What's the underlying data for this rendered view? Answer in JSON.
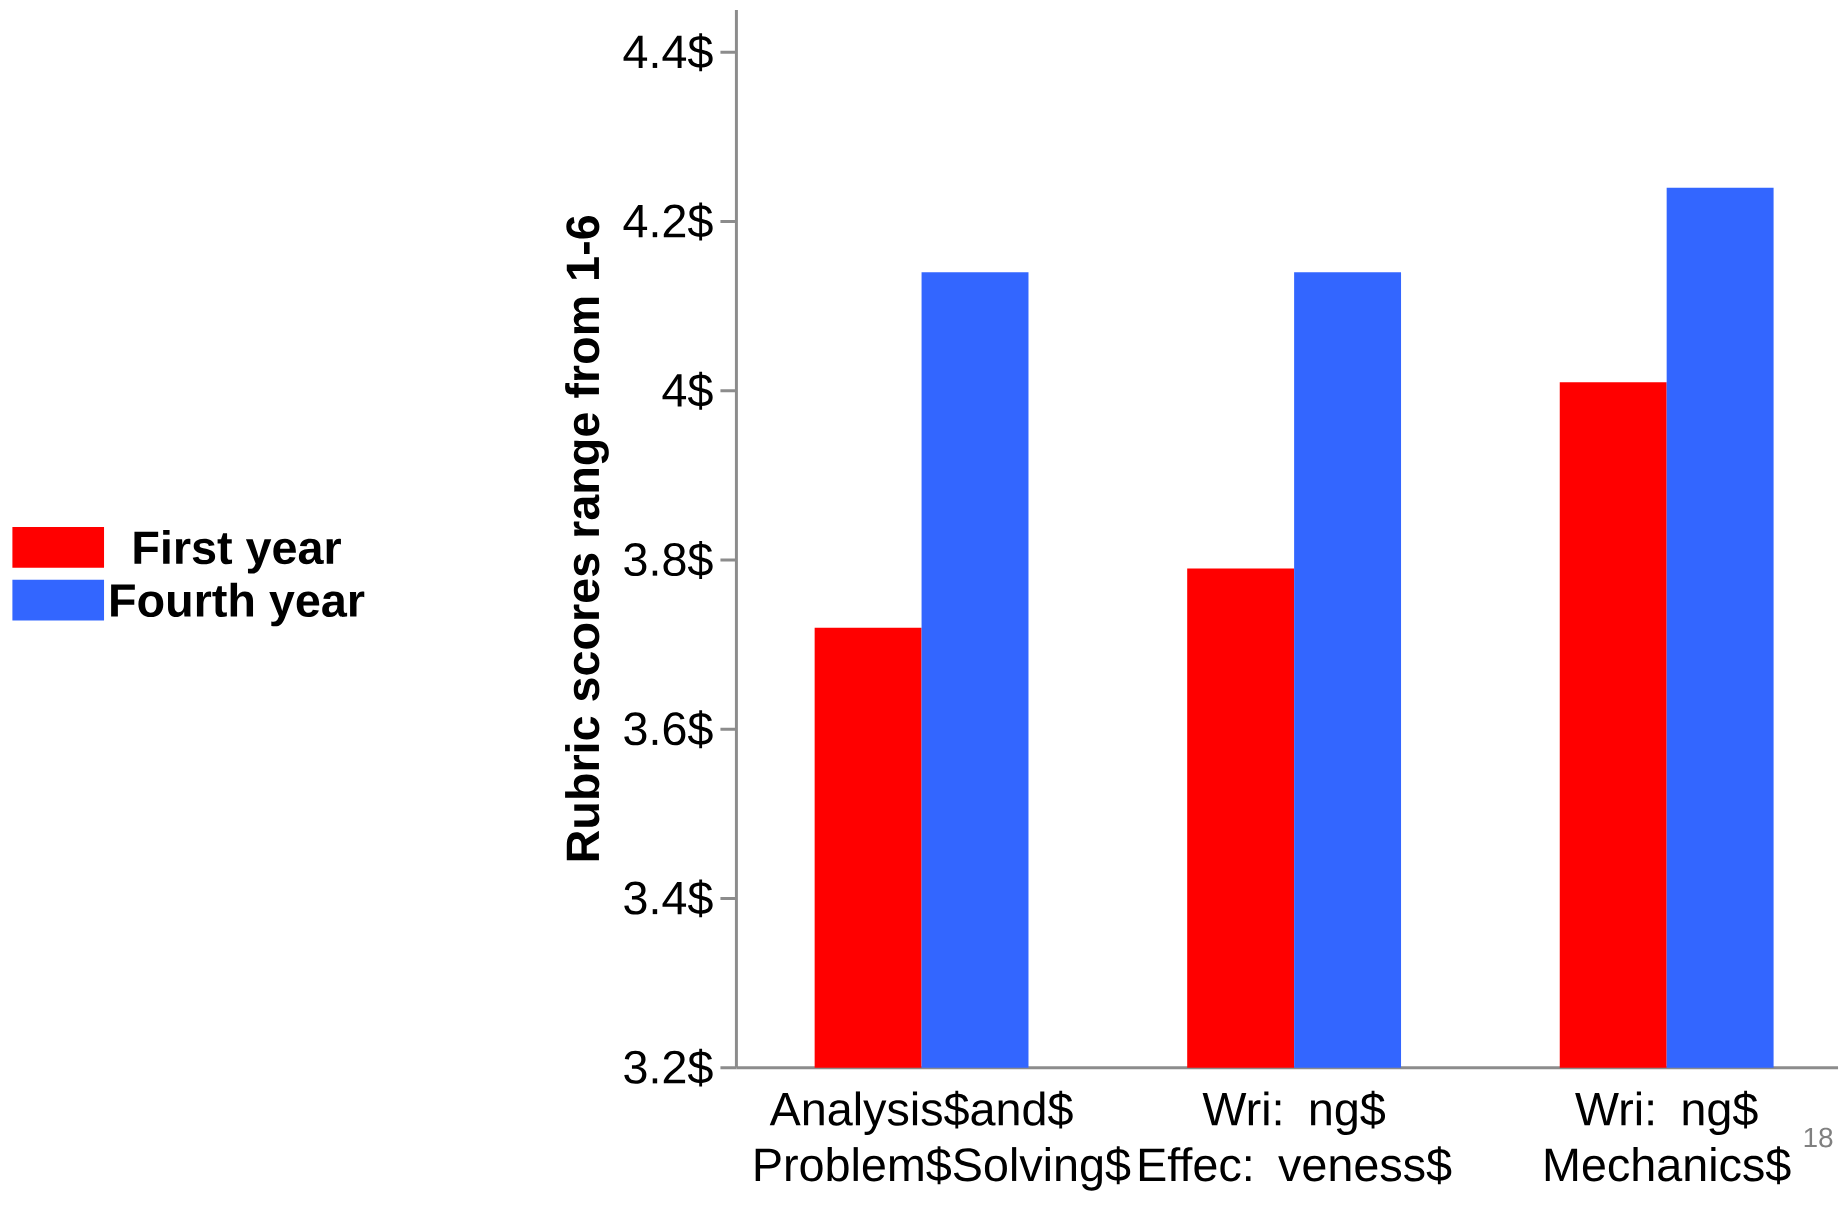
{
  "chart_data": {
    "type": "bar",
    "ylabel": "Rubric scores range from 1-6",
    "categories": [
      "Analysis$and$ Problem$Solving$",
      "Wri: ng$ Effec: veness$",
      "Wri: ng$ Mechanics$"
    ],
    "series": [
      {
        "name": "First year",
        "color": "#ff0000",
        "values": [
          3.72,
          3.79,
          4.01
        ]
      },
      {
        "name": "Fourth year",
        "color": "#3366ff",
        "values": [
          4.14,
          4.14,
          4.24
        ]
      }
    ],
    "ylim": [
      3.2,
      4.45
    ],
    "yticks": [
      {
        "value": 3.2,
        "label": "3.2$"
      },
      {
        "value": 3.4,
        "label": "3.4$"
      },
      {
        "value": 3.6,
        "label": "3.6$"
      },
      {
        "value": 3.8,
        "label": "3.8$"
      },
      {
        "value": 4.0,
        "label": "4$"
      },
      {
        "value": 4.2,
        "label": "4.2$"
      },
      {
        "value": 4.4,
        "label": "4.4$"
      }
    ],
    "legend": "left",
    "grid": false,
    "annotations": [
      "18"
    ]
  }
}
